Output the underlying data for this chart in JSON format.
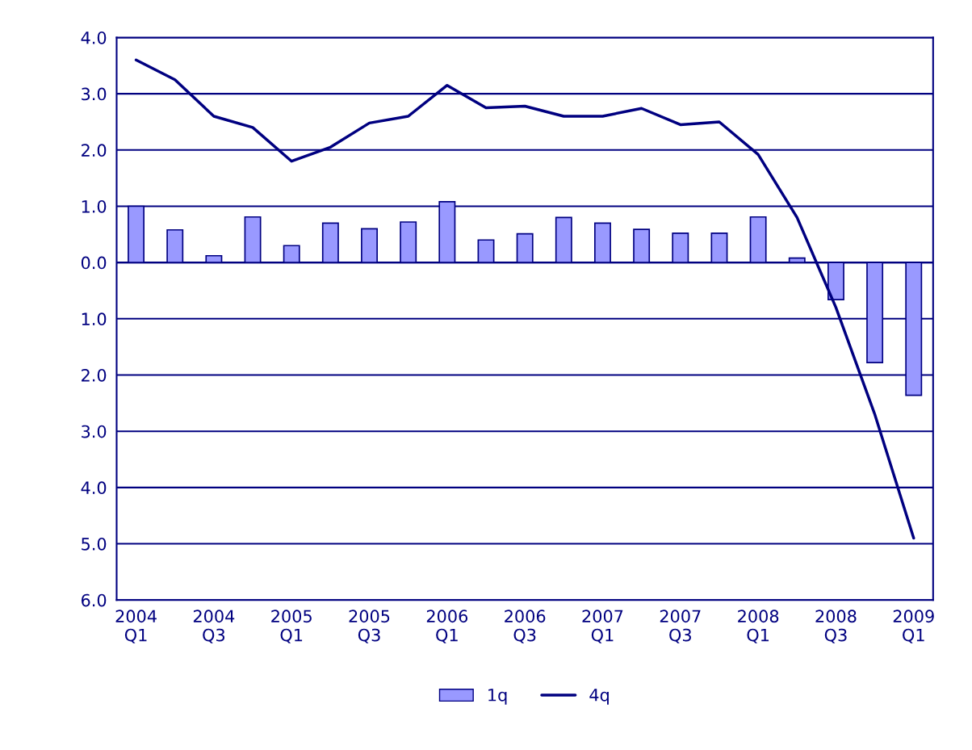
{
  "chart_data": {
    "type": "bar",
    "categories": [
      "2004\nQ1",
      null,
      "2004\nQ3",
      null,
      "2005\nQ1",
      null,
      "2005\nQ3",
      null,
      "2006\nQ1",
      null,
      "2006\nQ3",
      null,
      "2007\nQ1",
      null,
      "2007\nQ3",
      null,
      "2008\nQ1",
      null,
      "2008\nQ3",
      null,
      "2009\nQ1"
    ],
    "series": [
      {
        "name": "1q",
        "color": "#9999ff",
        "values": [
          1.0,
          0.58,
          0.12,
          0.81,
          0.3,
          0.7,
          0.6,
          0.72,
          1.08,
          0.4,
          0.51,
          0.8,
          0.7,
          0.59,
          0.52,
          0.52,
          0.81,
          0.08,
          -0.66,
          -1.78,
          -2.36
        ]
      },
      {
        "name": "4q",
        "type": "line",
        "color": "#000080",
        "values": [
          3.6,
          3.25,
          2.6,
          2.4,
          1.8,
          2.05,
          2.48,
          2.6,
          3.15,
          2.75,
          2.78,
          2.6,
          2.6,
          2.74,
          2.45,
          2.5,
          1.92,
          0.8,
          -0.8,
          -2.7,
          -4.9
        ]
      }
    ],
    "ylim": [
      -6,
      4
    ],
    "yticks": [
      {
        "value": 4,
        "label": "4.0"
      },
      {
        "value": 3,
        "label": "3.0"
      },
      {
        "value": 2,
        "label": "2.0"
      },
      {
        "value": 1,
        "label": "1.0"
      },
      {
        "value": 0,
        "label": "0.0"
      },
      {
        "value": -1,
        "label": "1.0"
      },
      {
        "value": -2,
        "label": "2.0"
      },
      {
        "value": -3,
        "label": "3.0"
      },
      {
        "value": -4,
        "label": "4.0"
      },
      {
        "value": -5,
        "label": "5.0"
      },
      {
        "value": -6,
        "label": "6.0"
      }
    ],
    "grid": "y",
    "legend": "bottom",
    "marker": "none",
    "line_style": "solid"
  }
}
